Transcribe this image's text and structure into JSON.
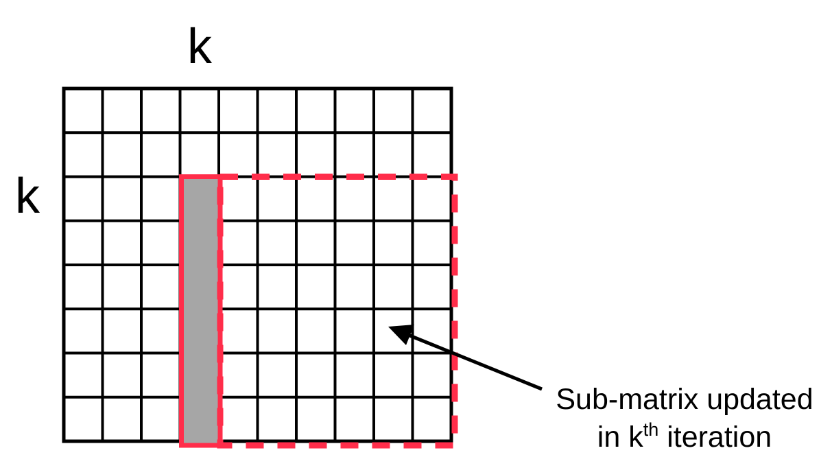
{
  "labels": {
    "column_k": "k",
    "row_k": "k"
  },
  "annotation": {
    "line1": "Sub-matrix updated",
    "line2_prefix": "in k",
    "line2_superscript": "th",
    "line2_suffix": " iteration"
  },
  "matrix": {
    "rows": 8,
    "columns": 10,
    "highlighted_column_index": 3,
    "submatrix_start_row": 2,
    "submatrix_start_column": 4
  },
  "colors": {
    "grid": "#000000",
    "highlight": "#ff2d4a",
    "highlight_fill": "#a6a6a6",
    "background": "#ffffff"
  }
}
